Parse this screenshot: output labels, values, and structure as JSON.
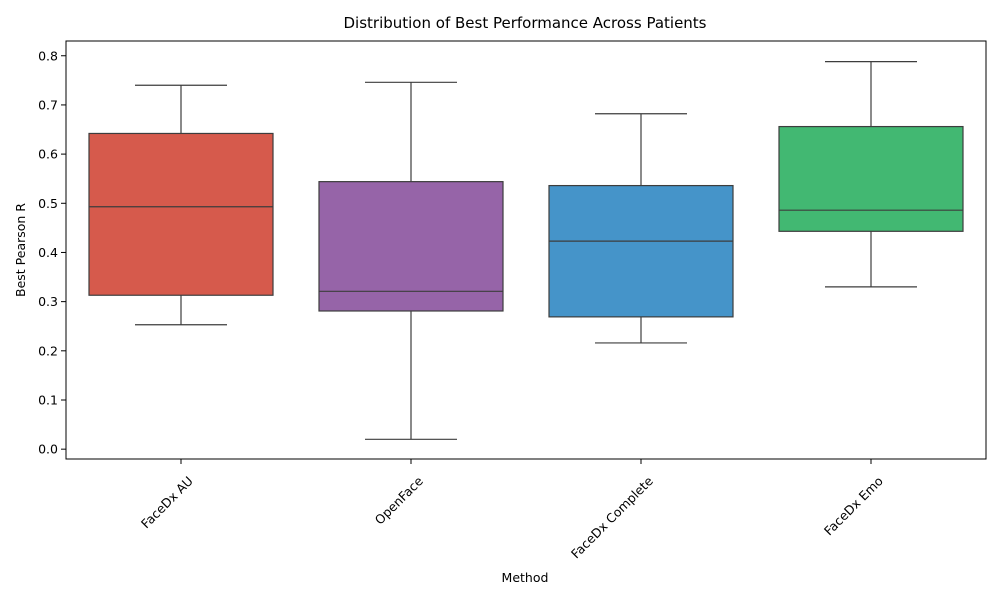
{
  "chart_data": {
    "type": "box",
    "title": "Distribution of Best Performance Across Patients",
    "xlabel": "Method",
    "ylabel": "Best Pearson R",
    "ylim": [
      -0.02,
      0.83
    ],
    "yticks": [
      0.0,
      0.1,
      0.2,
      0.3,
      0.4,
      0.5,
      0.6,
      0.7,
      0.8
    ],
    "ytick_labels": [
      "0.0",
      "0.1",
      "0.2",
      "0.3",
      "0.4",
      "0.5",
      "0.6",
      "0.7",
      "0.8"
    ],
    "grid": false,
    "legend": "none",
    "categories": [
      "FaceDx AU",
      "OpenFace",
      "FaceDx Complete",
      "FaceDx Emo"
    ],
    "boxes": [
      {
        "category": "FaceDx AU",
        "whisker_low": 0.253,
        "q1": 0.313,
        "median": 0.493,
        "q3": 0.642,
        "whisker_high": 0.74,
        "color": "#d65a4c"
      },
      {
        "category": "OpenFace",
        "whisker_low": 0.02,
        "q1": 0.281,
        "median": 0.321,
        "q3": 0.544,
        "whisker_high": 0.746,
        "color": "#9664a8"
      },
      {
        "category": "FaceDx Complete",
        "whisker_low": 0.216,
        "q1": 0.269,
        "median": 0.423,
        "q3": 0.536,
        "whisker_high": 0.682,
        "color": "#4594c9"
      },
      {
        "category": "FaceDx Emo",
        "whisker_low": 0.33,
        "q1": 0.443,
        "median": 0.486,
        "q3": 0.656,
        "whisker_high": 0.788,
        "color": "#42b872"
      }
    ],
    "line_color": "#3d3d3d"
  }
}
